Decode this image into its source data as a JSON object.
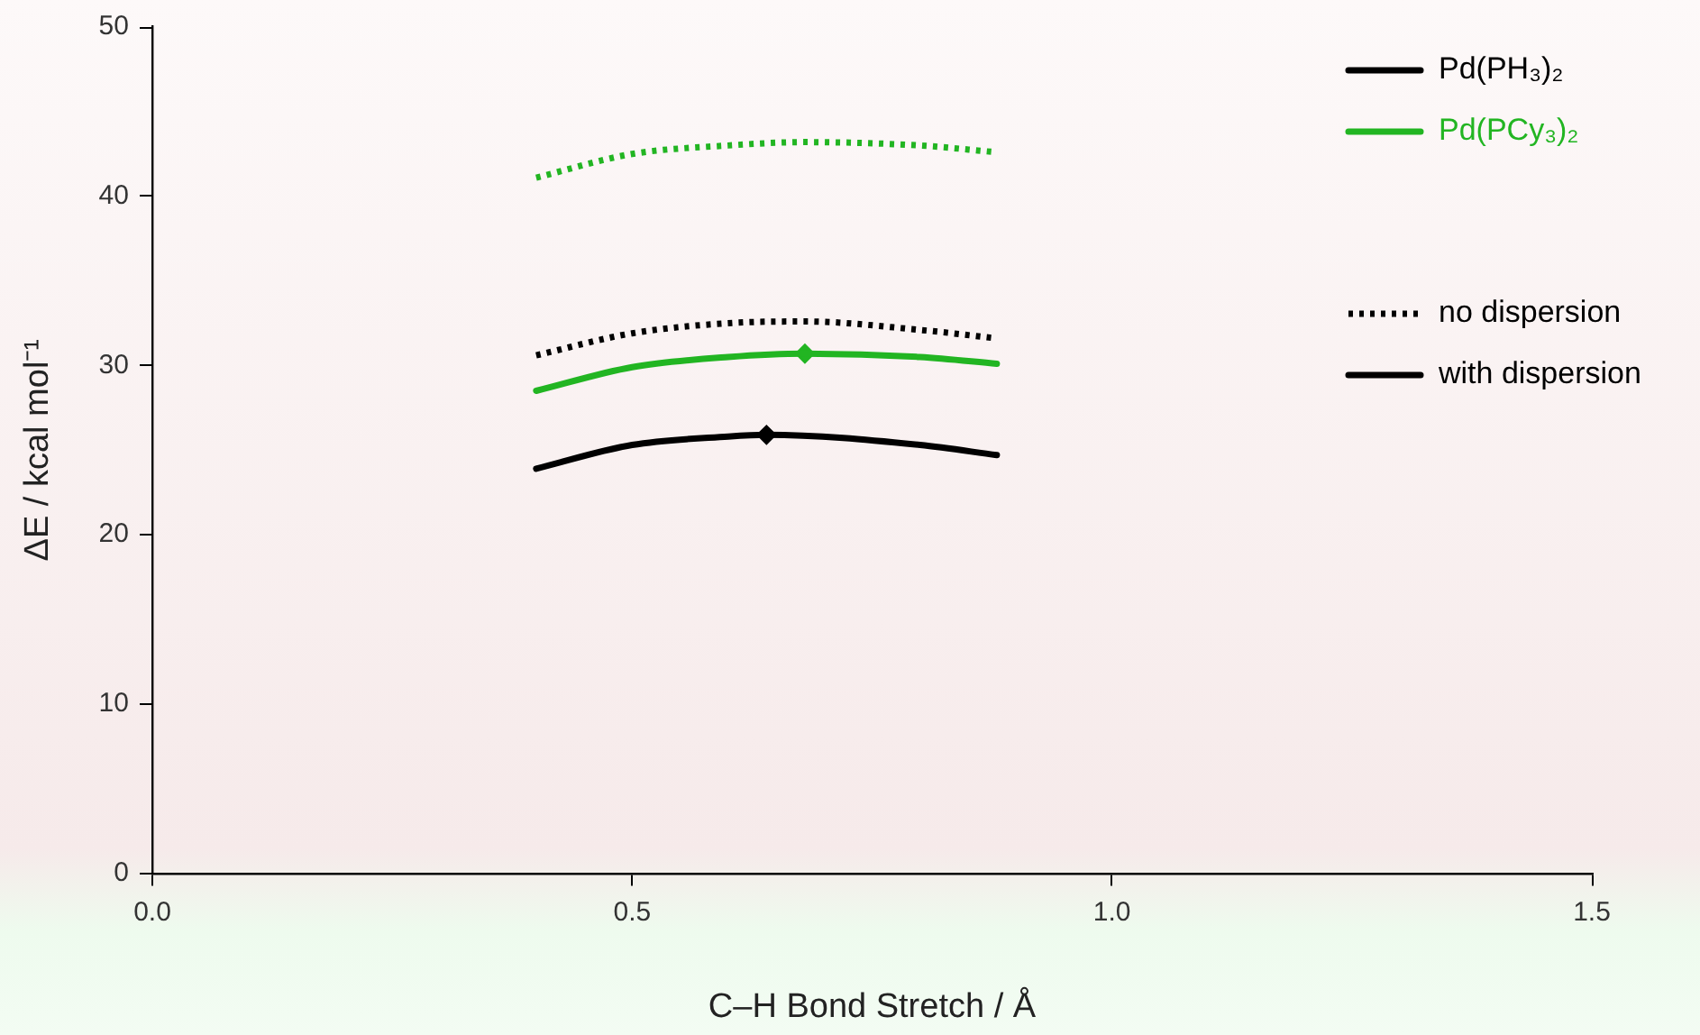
{
  "chart_data": {
    "type": "line",
    "xlabel": "C–H Bond Stretch / Å",
    "ylabel": "ΔE / kcal mol⁻¹",
    "xlim": [
      0,
      1.5
    ],
    "xticks": [
      {
        "value": 0,
        "label": "0.0"
      },
      0.5,
      {
        "value": 1,
        "label": "1.0"
      },
      1.5
    ],
    "ylim": [
      0,
      50
    ],
    "yticks": [
      0,
      10,
      20,
      30,
      40,
      50
    ],
    "grid": false,
    "legend": "top right",
    "marker": "none",
    "series": [
      {
        "color": "#22b522",
        "line_style": "dotted",
        "x": [
          0.4,
          0.5,
          0.6,
          0.68,
          0.8,
          0.88
        ],
        "values": [
          41.1,
          42.5,
          43.0,
          43.2,
          43.0,
          42.6
        ]
      },
      {
        "color": "#000000",
        "line_style": "dotted",
        "x": [
          0.4,
          0.5,
          0.6,
          0.68,
          0.8,
          0.88
        ],
        "values": [
          30.6,
          31.9,
          32.5,
          32.6,
          32.1,
          31.6
        ]
      },
      {
        "color": "#22b522",
        "line_style": "solid",
        "x": [
          0.4,
          0.5,
          0.6,
          0.68,
          0.8,
          0.88
        ],
        "values": [
          28.5,
          29.9,
          30.5,
          30.7,
          30.5,
          30.1
        ]
      },
      {
        "color": "#000000",
        "line_style": "solid",
        "x": [
          0.4,
          0.5,
          0.6,
          0.64,
          0.8,
          0.88
        ],
        "values": [
          23.9,
          25.3,
          25.8,
          25.9,
          25.3,
          24.7
        ]
      },
      {
        "type": "scatter",
        "marker": "diamond",
        "x": [
          0.64,
          0.68
        ],
        "values": [
          25.9,
          30.7
        ],
        "colors": [
          "#000000",
          "#22b522"
        ]
      },
      {
        "name": "Pd(PH₃)₂",
        "color": "#000000",
        "line_style": "solid"
      },
      {
        "name": "Pd(PCy₃)₂",
        "color": "#22b522",
        "line_style": "solid"
      },
      {
        "name": "no dispersion",
        "color": "#000000",
        "line_style": "dotted"
      },
      {
        "name": "with dispersion",
        "color": "#000000",
        "line_style": "solid"
      }
    ]
  }
}
